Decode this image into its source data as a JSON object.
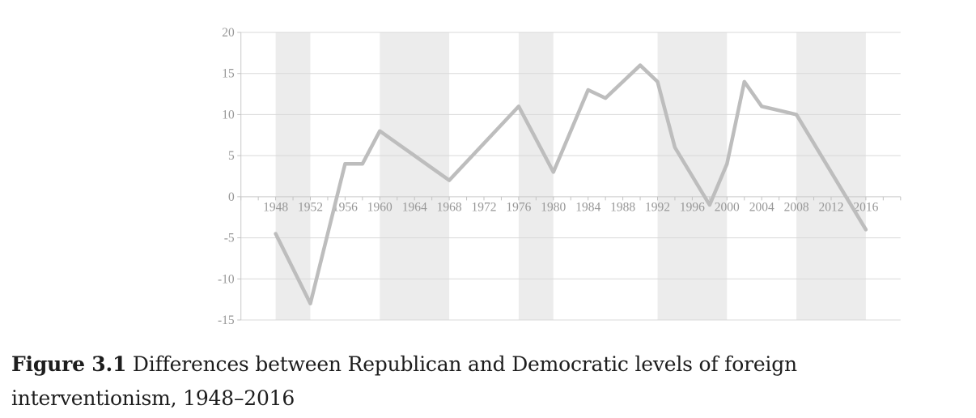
{
  "figure": {
    "caption": {
      "label": "Figure 3.1",
      "line1_rest": " Differences between Republican and Democratic levels of foreign",
      "line2": "interventionism, 1948–2016"
    }
  },
  "chart_data": {
    "type": "line",
    "title": "",
    "xlabel": "",
    "ylabel": "",
    "x": [
      1948,
      1950,
      1952,
      1954,
      1956,
      1958,
      1960,
      1962,
      1964,
      1966,
      1968,
      1970,
      1972,
      1974,
      1976,
      1978,
      1980,
      1982,
      1984,
      1986,
      1988,
      1990,
      1992,
      1994,
      1996,
      1998,
      2000,
      2002,
      2004,
      2006,
      2008,
      2010,
      2012,
      2014,
      2016
    ],
    "values": [
      -4.5,
      -8.75,
      -13,
      -4.5,
      4,
      4,
      8,
      6.5,
      5,
      3.5,
      2,
      4.25,
      6.5,
      8.75,
      11,
      7,
      3,
      8,
      13,
      12,
      14,
      16,
      14,
      6,
      2.5,
      -1,
      4,
      14,
      11,
      10.5,
      10,
      6.5,
      3,
      -0.5,
      -4
    ],
    "xlim": [
      1944,
      2020
    ],
    "ylim": [
      -15,
      20
    ],
    "yticks": [
      -15,
      -10,
      -5,
      0,
      5,
      10,
      15,
      20
    ],
    "xtick_labels": [
      1948,
      1952,
      1956,
      1960,
      1964,
      1968,
      1972,
      1976,
      1980,
      1984,
      1988,
      1992,
      1996,
      2000,
      2004,
      2008,
      2012,
      2016
    ],
    "minor_xtick_step_years": 2,
    "grid": "horizontal",
    "legend": "none",
    "shaded_bands": [
      [
        1948,
        1952
      ],
      [
        1960,
        1968
      ],
      [
        1976,
        1980
      ],
      [
        1992,
        2000
      ],
      [
        2008,
        2016
      ]
    ],
    "colors": {
      "line": "#bdbdbd",
      "grid": "#d9d9d9",
      "axis": "#c9c9c9",
      "tick": "#c2c2c2",
      "band": "#ececec",
      "tick_label": "#979797",
      "caption_text": "#1d1d1d",
      "background": "#ffffff"
    }
  }
}
